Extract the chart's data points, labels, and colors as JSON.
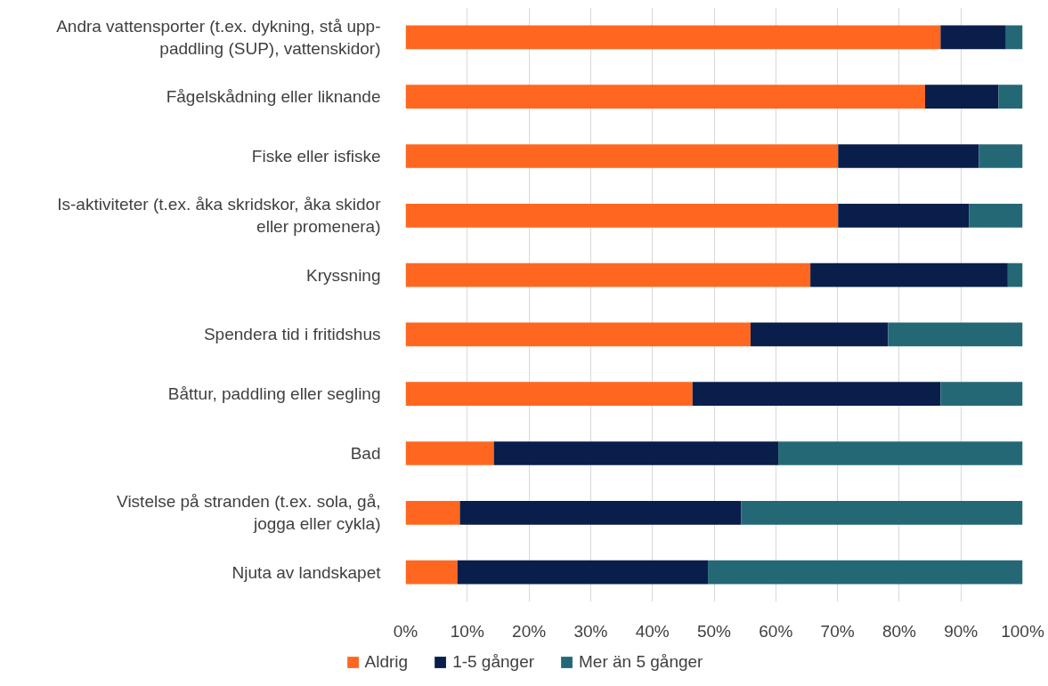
{
  "chart_data": {
    "type": "bar",
    "orientation": "horizontal",
    "stacked": true,
    "categories": [
      "Andra vattensporter (t.ex. dykning, stå upp-\npaddling (SUP), vattenskidor)",
      "Fågelskådning eller liknande",
      "Fiske eller isfiske",
      "Is-aktiviteter (t.ex. åka skridskor, åka skidor\neller promenera)",
      "Kryssning",
      "Spendera tid i fritidshus",
      "Båttur, paddling eller segling",
      "Bad",
      "Vistelse på stranden (t.ex. sola, gå,\njogga eller cykla)",
      "Njuta av landskapet"
    ],
    "series": [
      {
        "name": "Aldrig",
        "color": "#ff6720",
        "values": [
          86.7,
          84.2,
          70.1,
          70.1,
          65.6,
          55.9,
          46.5,
          14.3,
          8.8,
          8.4
        ]
      },
      {
        "name": "1-5 gånger",
        "color": "#091e4a",
        "values": [
          10.6,
          11.9,
          22.8,
          21.2,
          32.0,
          22.3,
          40.2,
          46.1,
          45.6,
          40.6
        ]
      },
      {
        "name": "Mer än 5 gånger",
        "color": "#246875",
        "values": [
          2.7,
          3.9,
          7.1,
          8.7,
          2.4,
          21.8,
          13.3,
          39.6,
          45.6,
          51.0
        ]
      }
    ],
    "xlim": [
      0,
      100
    ],
    "xticks": [
      {
        "value": 0,
        "label": "0%"
      },
      {
        "value": 10,
        "label": "10%"
      },
      {
        "value": 20,
        "label": "20%"
      },
      {
        "value": 30,
        "label": "30%"
      },
      {
        "value": 40,
        "label": "40%"
      },
      {
        "value": 50,
        "label": "50%"
      },
      {
        "value": 60,
        "label": "60%"
      },
      {
        "value": 70,
        "label": "70%"
      },
      {
        "value": 80,
        "label": "80%"
      },
      {
        "value": 90,
        "label": "90%"
      },
      {
        "value": 100,
        "label": "100%"
      }
    ],
    "grid": "x",
    "legend": "bottom"
  }
}
